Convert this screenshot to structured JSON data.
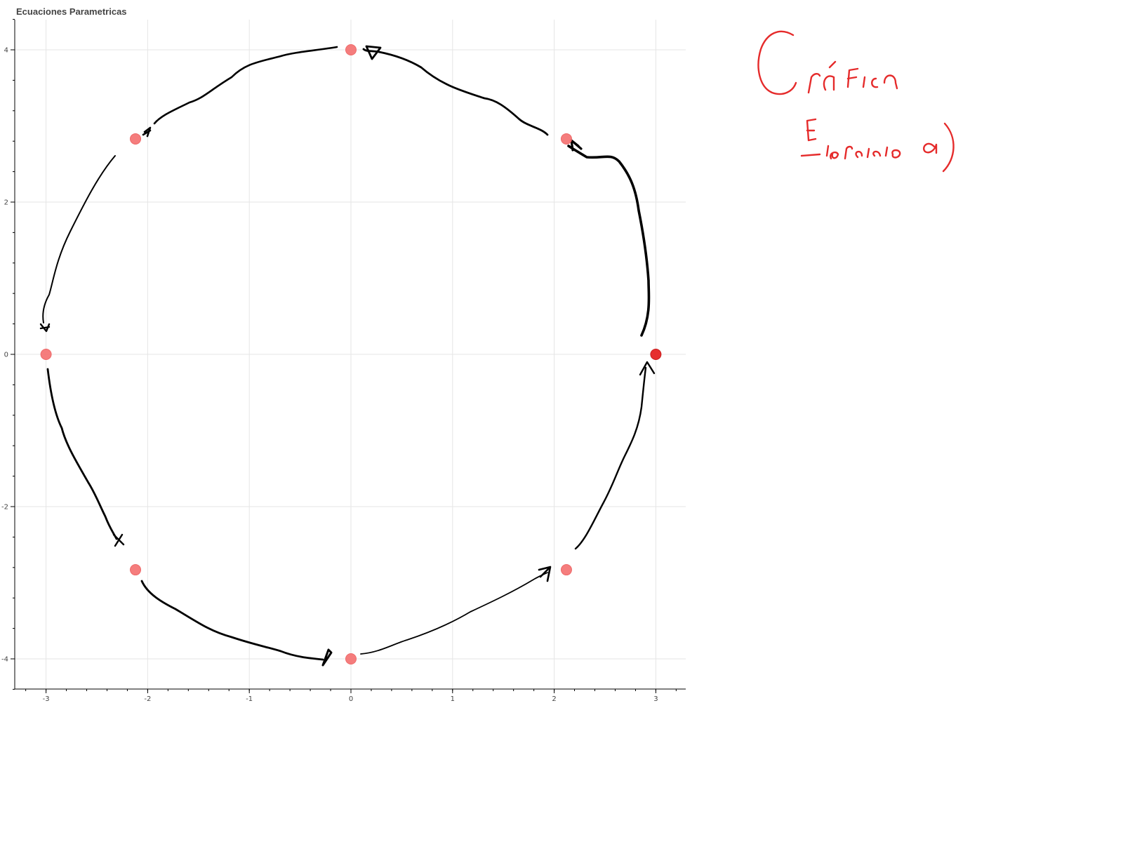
{
  "colors": {
    "point": "#f47272",
    "point_highlight": "#e62e2e",
    "ink": "#000000",
    "annotation": "#e52b2b",
    "grid": "#e5e5e5"
  },
  "chart_data": {
    "type": "scatter",
    "title": "Ecuaciones Parametricas",
    "xlabel": "",
    "ylabel": "",
    "xlim": [
      -3.3,
      3.3
    ],
    "ylim": [
      -4.4,
      4.4
    ],
    "x_ticks": [
      "-3",
      "-2",
      "-1",
      "0",
      "1",
      "2",
      "3"
    ],
    "y_ticks": [
      "4",
      "2",
      "0",
      "-2",
      "-4"
    ],
    "grid": true,
    "series": [
      {
        "points": [
          {
            "x": 3,
            "y": 0
          },
          {
            "x": 2.12,
            "y": 2.83
          },
          {
            "x": 0,
            "y": 4
          },
          {
            "x": -2.12,
            "y": 2.83
          },
          {
            "x": -3,
            "y": 0
          },
          {
            "x": -2.12,
            "y": -2.83
          },
          {
            "x": 0,
            "y": -4
          },
          {
            "x": 2.12,
            "y": -2.83
          }
        ]
      }
    ],
    "highlighted_point_index": 0
  },
  "annotation": {
    "handwritten_lines": [
      "Gráfica",
      "Ejercicio a)"
    ]
  }
}
